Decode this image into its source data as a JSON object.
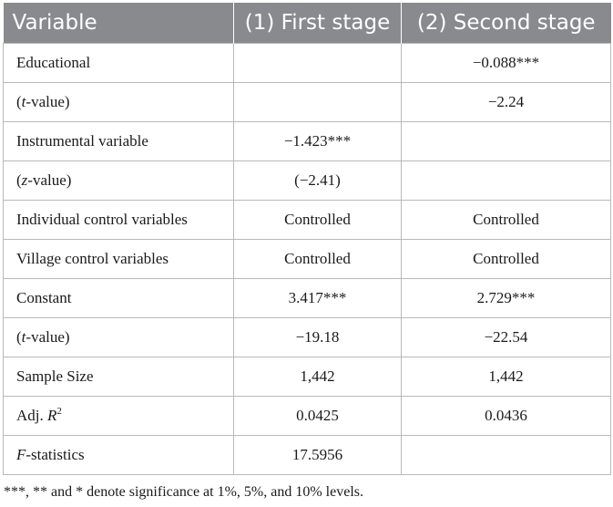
{
  "table": {
    "headers": [
      "Variable",
      "(1) First stage",
      "(2) Second stage"
    ],
    "rows": [
      {
        "label": "Educational",
        "c1": "",
        "c2": "−0.088***"
      },
      {
        "label_prefix": "(",
        "label_italic": "t",
        "label_suffix": "-value)",
        "c1": "",
        "c2": "−2.24"
      },
      {
        "label": "Instrumental variable",
        "c1": "−1.423***",
        "c2": ""
      },
      {
        "label_prefix": "(",
        "label_italic": "z",
        "label_suffix": "-value)",
        "c1": "(−2.41)",
        "c2": ""
      },
      {
        "label": "Individual control variables",
        "c1": "Controlled",
        "c2": "Controlled"
      },
      {
        "label": "Village control variables",
        "c1": "Controlled",
        "c2": "Controlled"
      },
      {
        "label": "Constant",
        "c1": "3.417***",
        "c2": "2.729***"
      },
      {
        "label_prefix": "(",
        "label_italic": "t",
        "label_suffix": "-value)",
        "c1": "−19.18",
        "c2": "−22.54"
      },
      {
        "label": "Sample Size",
        "c1": "1,442",
        "c2": "1,442"
      },
      {
        "label_prefix": "Adj. ",
        "label_italic": "R",
        "label_sup": "2",
        "c1": "0.0425",
        "c2": "0.0436"
      },
      {
        "label_italic": "F",
        "label_suffix": "-statistics",
        "c1": "17.5956",
        "c2": ""
      }
    ]
  },
  "footnote": "***, ** and * denote significance at 1%, 5%, and 10% levels.",
  "colors": {
    "header_bg": "#888a8d",
    "header_text": "#ffffff",
    "grid": "#b9b9b9"
  }
}
